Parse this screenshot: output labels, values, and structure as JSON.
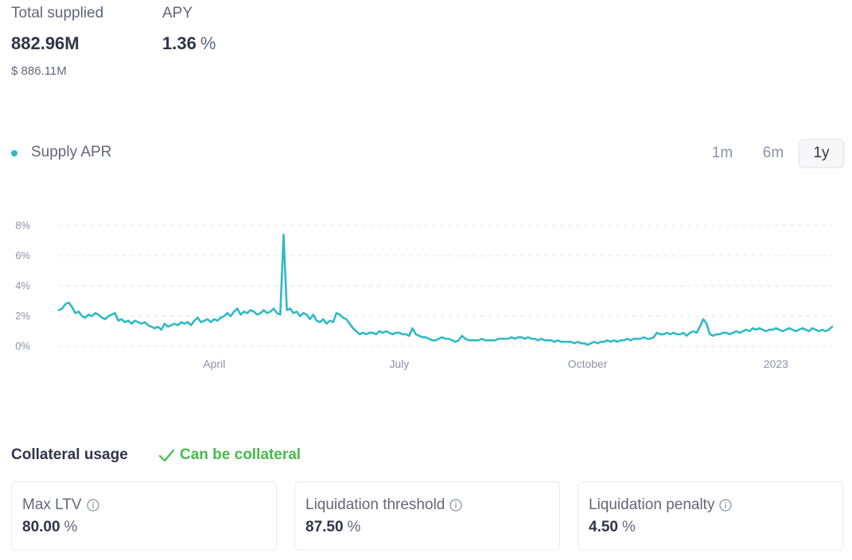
{
  "supply": {
    "total_supplied_label": "Total supplied",
    "total_supplied_value": "882.96M",
    "total_supplied_usd": "$ 886.11M",
    "apy_label": "APY",
    "apy_value": "1.36",
    "apy_unit": "%"
  },
  "chart_legend": {
    "label": "Supply APR",
    "color": "#2ebac6"
  },
  "time_ranges": [
    {
      "label": "1m",
      "active": false
    },
    {
      "label": "6m",
      "active": false
    },
    {
      "label": "1y",
      "active": true
    }
  ],
  "chart_data": {
    "type": "line",
    "series": [
      {
        "name": "Supply APR",
        "color": "#2ebac6",
        "points": [
          [
            0,
            2.4
          ],
          [
            1,
            2.5
          ],
          [
            2,
            2.8
          ],
          [
            3,
            2.9
          ],
          [
            4,
            2.6
          ],
          [
            5,
            2.2
          ],
          [
            6,
            2.3
          ],
          [
            7,
            2.0
          ],
          [
            8,
            1.9
          ],
          [
            9,
            2.1
          ],
          [
            10,
            2.0
          ],
          [
            11,
            2.2
          ],
          [
            12,
            2.1
          ],
          [
            13,
            1.9
          ],
          [
            14,
            1.8
          ],
          [
            15,
            2.0
          ],
          [
            16,
            2.1
          ],
          [
            17,
            2.2
          ],
          [
            18,
            1.7
          ],
          [
            19,
            1.8
          ],
          [
            20,
            1.6
          ],
          [
            21,
            1.7
          ],
          [
            22,
            1.5
          ],
          [
            23,
            1.7
          ],
          [
            24,
            1.6
          ],
          [
            25,
            1.5
          ],
          [
            26,
            1.6
          ],
          [
            27,
            1.4
          ],
          [
            28,
            1.3
          ],
          [
            29,
            1.2
          ],
          [
            30,
            1.3
          ],
          [
            31,
            1.1
          ],
          [
            32,
            1.5
          ],
          [
            33,
            1.3
          ],
          [
            34,
            1.4
          ],
          [
            35,
            1.5
          ],
          [
            36,
            1.4
          ],
          [
            37,
            1.6
          ],
          [
            38,
            1.5
          ],
          [
            39,
            1.6
          ],
          [
            40,
            1.4
          ],
          [
            41,
            1.7
          ],
          [
            42,
            1.9
          ],
          [
            43,
            1.6
          ],
          [
            44,
            1.7
          ],
          [
            45,
            1.8
          ],
          [
            46,
            1.6
          ],
          [
            47,
            1.8
          ],
          [
            48,
            1.7
          ],
          [
            49,
            1.9
          ],
          [
            50,
            2.0
          ],
          [
            51,
            2.2
          ],
          [
            52,
            2.0
          ],
          [
            53,
            2.3
          ],
          [
            54,
            2.5
          ],
          [
            55,
            2.1
          ],
          [
            56,
            2.3
          ],
          [
            57,
            2.2
          ],
          [
            58,
            2.4
          ],
          [
            59,
            2.3
          ],
          [
            60,
            2.1
          ],
          [
            61,
            2.2
          ],
          [
            62,
            2.4
          ],
          [
            63,
            2.2
          ],
          [
            64,
            2.3
          ],
          [
            65,
            2.5
          ],
          [
            66,
            2.2
          ],
          [
            67,
            2.1
          ],
          [
            68,
            7.4
          ],
          [
            69,
            2.4
          ],
          [
            70,
            2.5
          ],
          [
            71,
            2.2
          ],
          [
            72,
            2.3
          ],
          [
            73,
            2.0
          ],
          [
            74,
            2.2
          ],
          [
            75,
            2.1
          ],
          [
            76,
            1.8
          ],
          [
            77,
            2.1
          ],
          [
            78,
            1.7
          ],
          [
            79,
            1.6
          ],
          [
            80,
            1.8
          ],
          [
            81,
            1.5
          ],
          [
            82,
            1.7
          ],
          [
            83,
            1.6
          ],
          [
            84,
            2.2
          ],
          [
            85,
            2.1
          ],
          [
            86,
            1.9
          ],
          [
            87,
            1.8
          ],
          [
            88,
            1.5
          ],
          [
            89,
            1.2
          ],
          [
            90,
            1.0
          ],
          [
            91,
            0.8
          ],
          [
            92,
            0.9
          ],
          [
            93,
            0.8
          ],
          [
            94,
            0.9
          ],
          [
            95,
            0.9
          ],
          [
            96,
            0.8
          ],
          [
            97,
            1.0
          ],
          [
            98,
            0.9
          ],
          [
            99,
            1.0
          ],
          [
            100,
            0.9
          ],
          [
            101,
            0.8
          ],
          [
            102,
            0.9
          ],
          [
            103,
            0.9
          ],
          [
            104,
            0.8
          ],
          [
            105,
            0.8
          ],
          [
            106,
            0.7
          ],
          [
            107,
            1.2
          ],
          [
            108,
            0.8
          ],
          [
            109,
            0.7
          ],
          [
            110,
            0.6
          ],
          [
            111,
            0.6
          ],
          [
            112,
            0.5
          ],
          [
            113,
            0.4
          ],
          [
            114,
            0.4
          ],
          [
            115,
            0.5
          ],
          [
            116,
            0.6
          ],
          [
            117,
            0.5
          ],
          [
            118,
            0.5
          ],
          [
            119,
            0.4
          ],
          [
            120,
            0.3
          ],
          [
            121,
            0.4
          ],
          [
            122,
            0.7
          ],
          [
            123,
            0.5
          ],
          [
            124,
            0.4
          ],
          [
            125,
            0.4
          ],
          [
            126,
            0.4
          ],
          [
            127,
            0.4
          ],
          [
            128,
            0.5
          ],
          [
            129,
            0.4
          ],
          [
            130,
            0.4
          ],
          [
            131,
            0.4
          ],
          [
            132,
            0.4
          ],
          [
            133,
            0.5
          ],
          [
            134,
            0.5
          ],
          [
            135,
            0.5
          ],
          [
            136,
            0.5
          ],
          [
            137,
            0.6
          ],
          [
            138,
            0.5
          ],
          [
            139,
            0.6
          ],
          [
            140,
            0.6
          ],
          [
            141,
            0.5
          ],
          [
            142,
            0.6
          ],
          [
            143,
            0.5
          ],
          [
            144,
            0.5
          ],
          [
            145,
            0.4
          ],
          [
            146,
            0.5
          ],
          [
            147,
            0.4
          ],
          [
            148,
            0.4
          ],
          [
            149,
            0.4
          ],
          [
            150,
            0.3
          ],
          [
            151,
            0.4
          ],
          [
            152,
            0.3
          ],
          [
            153,
            0.3
          ],
          [
            154,
            0.3
          ],
          [
            155,
            0.3
          ],
          [
            156,
            0.2
          ],
          [
            157,
            0.3
          ],
          [
            158,
            0.2
          ],
          [
            159,
            0.2
          ],
          [
            160,
            0.1
          ],
          [
            161,
            0.2
          ],
          [
            162,
            0.3
          ],
          [
            163,
            0.2
          ],
          [
            164,
            0.3
          ],
          [
            165,
            0.3
          ],
          [
            166,
            0.4
          ],
          [
            167,
            0.3
          ],
          [
            168,
            0.4
          ],
          [
            169,
            0.3
          ],
          [
            170,
            0.4
          ],
          [
            171,
            0.4
          ],
          [
            172,
            0.5
          ],
          [
            173,
            0.4
          ],
          [
            174,
            0.5
          ],
          [
            175,
            0.5
          ],
          [
            176,
            0.5
          ],
          [
            177,
            0.6
          ],
          [
            178,
            0.5
          ],
          [
            179,
            0.5
          ],
          [
            180,
            0.6
          ],
          [
            181,
            0.9
          ],
          [
            182,
            0.8
          ],
          [
            183,
            0.8
          ],
          [
            184,
            0.9
          ],
          [
            185,
            0.8
          ],
          [
            186,
            0.9
          ],
          [
            187,
            0.8
          ],
          [
            188,
            0.8
          ],
          [
            189,
            0.9
          ],
          [
            190,
            0.7
          ],
          [
            191,
            0.9
          ],
          [
            192,
            1.0
          ],
          [
            193,
            0.9
          ],
          [
            194,
            1.3
          ],
          [
            195,
            1.8
          ],
          [
            196,
            1.5
          ],
          [
            197,
            0.8
          ],
          [
            198,
            0.7
          ],
          [
            199,
            0.8
          ],
          [
            200,
            0.8
          ],
          [
            201,
            0.9
          ],
          [
            202,
            0.9
          ],
          [
            203,
            0.8
          ],
          [
            204,
            0.9
          ],
          [
            205,
            1.0
          ],
          [
            206,
            0.9
          ],
          [
            207,
            1.0
          ],
          [
            208,
            1.1
          ],
          [
            209,
            1.0
          ],
          [
            210,
            1.2
          ],
          [
            211,
            1.1
          ],
          [
            212,
            1.2
          ],
          [
            213,
            1.1
          ],
          [
            214,
            1.0
          ],
          [
            215,
            1.1
          ],
          [
            216,
            1.1
          ],
          [
            217,
            1.2
          ],
          [
            218,
            1.1
          ],
          [
            219,
            1.0
          ],
          [
            220,
            1.1
          ],
          [
            221,
            1.2
          ],
          [
            222,
            1.1
          ],
          [
            223,
            1.0
          ],
          [
            224,
            1.1
          ],
          [
            225,
            1.2
          ],
          [
            226,
            1.1
          ],
          [
            227,
            1.0
          ],
          [
            228,
            1.2
          ],
          [
            229,
            1.1
          ],
          [
            230,
            1.0
          ],
          [
            231,
            1.1
          ],
          [
            232,
            1.0
          ],
          [
            233,
            1.1
          ],
          [
            234,
            1.3
          ]
        ]
      }
    ],
    "x_ticks": [
      {
        "label": "April",
        "x": 47
      },
      {
        "label": "July",
        "x": 103
      },
      {
        "label": "October",
        "x": 160
      },
      {
        "label": "2023",
        "x": 217
      }
    ],
    "y_ticks": [
      "0%",
      "2%",
      "4%",
      "6%",
      "8%"
    ],
    "ylim": [
      0,
      8
    ],
    "xlim": [
      0,
      234
    ],
    "grid": true,
    "grid_style": "dashed"
  },
  "collateral": {
    "title": "Collateral usage",
    "status": "Can be collateral",
    "status_color": "#46bc4b"
  },
  "cards": [
    {
      "label": "Max LTV",
      "value": "80.00",
      "unit": "%"
    },
    {
      "label": "Liquidation threshold",
      "value": "87.50",
      "unit": "%"
    },
    {
      "label": "Liquidation penalty",
      "value": "4.50",
      "unit": "%"
    }
  ]
}
